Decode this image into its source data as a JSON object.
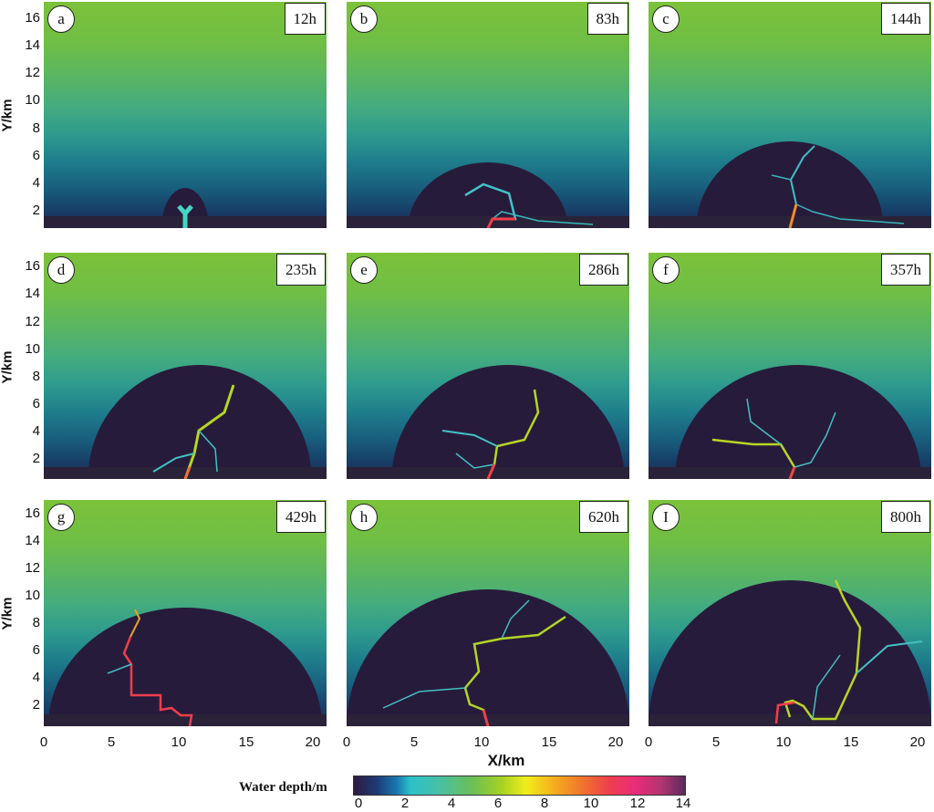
{
  "panels": [
    {
      "letter": "a",
      "time": "12h"
    },
    {
      "letter": "b",
      "time": "83h"
    },
    {
      "letter": "c",
      "time": "144h"
    },
    {
      "letter": "d",
      "time": "235h"
    },
    {
      "letter": "e",
      "time": "286h"
    },
    {
      "letter": "f",
      "time": "357h"
    },
    {
      "letter": "g",
      "time": "429h"
    },
    {
      "letter": "h",
      "time": "620h"
    },
    {
      "letter": "I",
      "time": "800h"
    }
  ],
  "axes": {
    "ylabel": "Y/km",
    "xlabel": "X/km",
    "yticks": [
      "16",
      "14",
      "12",
      "10",
      "8",
      "6",
      "4",
      "2"
    ],
    "xticks": [
      "0",
      "5",
      "10",
      "15",
      "20"
    ]
  },
  "colorbar": {
    "title": "Water depth/m",
    "ticks": [
      "0",
      "2",
      "4",
      "6",
      "8",
      "10",
      "12",
      "14"
    ]
  }
}
